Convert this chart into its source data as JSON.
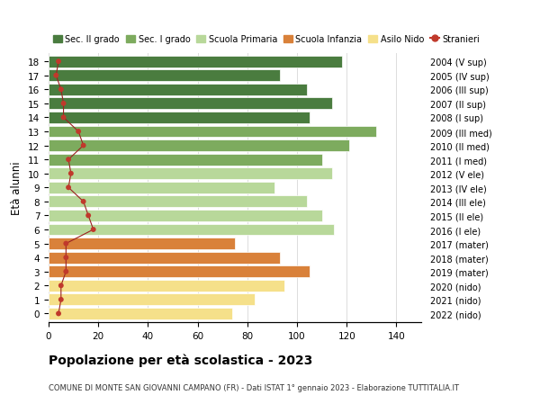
{
  "ages": [
    18,
    17,
    16,
    15,
    14,
    13,
    12,
    11,
    10,
    9,
    8,
    7,
    6,
    5,
    4,
    3,
    2,
    1,
    0
  ],
  "right_labels": [
    "2004 (V sup)",
    "2005 (IV sup)",
    "2006 (III sup)",
    "2007 (II sup)",
    "2008 (I sup)",
    "2009 (III med)",
    "2010 (II med)",
    "2011 (I med)",
    "2012 (V ele)",
    "2013 (IV ele)",
    "2014 (III ele)",
    "2015 (II ele)",
    "2016 (I ele)",
    "2017 (mater)",
    "2018 (mater)",
    "2019 (mater)",
    "2020 (nido)",
    "2021 (nido)",
    "2022 (nido)"
  ],
  "bar_values": [
    118,
    93,
    104,
    114,
    105,
    132,
    121,
    110,
    114,
    91,
    104,
    110,
    115,
    75,
    93,
    105,
    95,
    83,
    74
  ],
  "stranieri_values": [
    4,
    3,
    5,
    6,
    6,
    12,
    14,
    8,
    9,
    8,
    14,
    16,
    18,
    7,
    7,
    7,
    5,
    5,
    4
  ],
  "bar_colors": [
    "#4a7c3f",
    "#4a7c3f",
    "#4a7c3f",
    "#4a7c3f",
    "#4a7c3f",
    "#7dab5e",
    "#7dab5e",
    "#7dab5e",
    "#b8d89a",
    "#b8d89a",
    "#b8d89a",
    "#b8d89a",
    "#b8d89a",
    "#d9813a",
    "#d9813a",
    "#d9813a",
    "#f5e08a",
    "#f5e08a",
    "#f5e08a"
  ],
  "legend_labels": [
    "Sec. II grado",
    "Sec. I grado",
    "Scuola Primaria",
    "Scuola Infanzia",
    "Asilo Nido",
    "Stranieri"
  ],
  "legend_colors": [
    "#4a7c3f",
    "#7dab5e",
    "#b8d89a",
    "#d9813a",
    "#f5e08a",
    "#c0392b"
  ],
  "ylabel_left": "Età alunni",
  "xlim": [
    0,
    150
  ],
  "xticks": [
    0,
    20,
    40,
    60,
    80,
    100,
    120,
    140
  ],
  "title": "Popolazione per età scolastica - 2023",
  "subtitle": "COMUNE DI MONTE SAN GIOVANNI CAMPANO (FR) - Dati ISTAT 1° gennaio 2023 - Elaborazione TUTTITALIA.IT",
  "bg_color": "#ffffff",
  "bar_height": 0.82,
  "stranieri_color": "#c0392b",
  "stranieri_line_color": "#9b2020",
  "grid_color": "#dddddd"
}
